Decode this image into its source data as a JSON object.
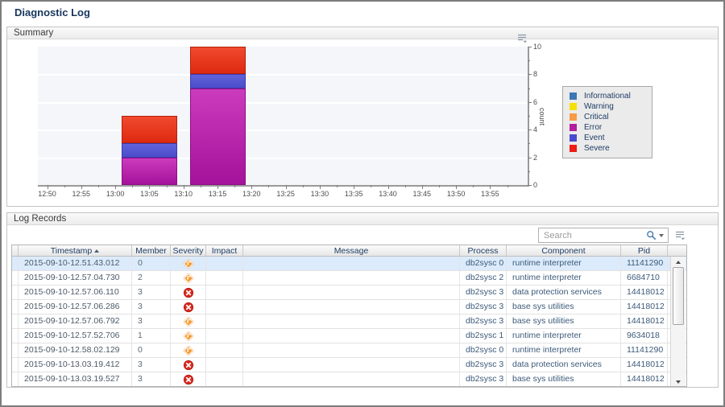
{
  "title": "Diagnostic Log",
  "summary": {
    "header": "Summary"
  },
  "chart_data": {
    "type": "bar",
    "stacked": true,
    "title": "",
    "xlabel": "",
    "ylabel": "count",
    "ylim": [
      0,
      10
    ],
    "y_ticks": [
      0,
      2,
      4,
      6,
      8,
      10
    ],
    "x_ticks": [
      "12:50",
      "12:55",
      "13:00",
      "13:05",
      "13:10",
      "13:15",
      "13:20",
      "13:25",
      "13:30",
      "13:35",
      "13:40",
      "13:45",
      "13:50",
      "13:55"
    ],
    "bar_centers": [
      "13:05",
      "13:15"
    ],
    "series": [
      {
        "name": "Error",
        "values": [
          2,
          7
        ],
        "color": "#cb3bbd",
        "color2": "#a5129b",
        "border": "#8f0d86"
      },
      {
        "name": "Event",
        "values": [
          1,
          1
        ],
        "color": "#6163db",
        "color2": "#4b4cc9",
        "border": "#3b3caf"
      },
      {
        "name": "Severe",
        "values": [
          2,
          2
        ],
        "color": "#f04a2e",
        "color2": "#de2a10",
        "border": "#b6200c"
      }
    ],
    "legend": [
      {
        "label": "Informational",
        "color": "#3c78b4"
      },
      {
        "label": "Warning",
        "color": "#f5e000"
      },
      {
        "label": "Critical",
        "color": "#f79b46"
      },
      {
        "label": "Error",
        "color": "#b41e9e"
      },
      {
        "label": "Event",
        "color": "#4a4ace"
      },
      {
        "label": "Severe",
        "color": "#ed1c14"
      }
    ],
    "legend_position": "right",
    "grid": true
  },
  "log": {
    "header": "Log Records",
    "search_placeholder": "Search",
    "columns": [
      {
        "label": "Timestamp",
        "sort": "asc"
      },
      {
        "label": "Member"
      },
      {
        "label": "Severity"
      },
      {
        "label": "Impact"
      },
      {
        "label": "Message"
      },
      {
        "label": "Process"
      },
      {
        "label": "Component"
      },
      {
        "label": "Pid"
      }
    ],
    "selected_row_index": 0,
    "rows": [
      {
        "timestamp": "2015-09-10-12.51.43.012",
        "member": "0",
        "severity": "warning",
        "impact": "",
        "message": "",
        "process": "db2sysc 0",
        "component": "runtime interpreter",
        "pid": "11141290"
      },
      {
        "timestamp": "2015-09-10-12.57.04.730",
        "member": "2",
        "severity": "warning",
        "impact": "",
        "message": "",
        "process": "db2sysc 2",
        "component": "runtime interpreter",
        "pid": "6684710"
      },
      {
        "timestamp": "2015-09-10-12.57.06.110",
        "member": "3",
        "severity": "error",
        "impact": "",
        "message": "",
        "process": "db2sysc 3",
        "component": "data protection services",
        "pid": "14418012"
      },
      {
        "timestamp": "2015-09-10-12.57.06.286",
        "member": "3",
        "severity": "error",
        "impact": "",
        "message": "",
        "process": "db2sysc 3",
        "component": "base sys utilities",
        "pid": "14418012"
      },
      {
        "timestamp": "2015-09-10-12.57.06.792",
        "member": "3",
        "severity": "warning",
        "impact": "",
        "message": "",
        "process": "db2sysc 3",
        "component": "base sys utilities",
        "pid": "14418012"
      },
      {
        "timestamp": "2015-09-10-12.57.52.706",
        "member": "1",
        "severity": "warning",
        "impact": "",
        "message": "",
        "process": "db2sysc 1",
        "component": "runtime interpreter",
        "pid": "9634018"
      },
      {
        "timestamp": "2015-09-10-12.58.02.129",
        "member": "0",
        "severity": "warning",
        "impact": "",
        "message": "",
        "process": "db2sysc 0",
        "component": "runtime interpreter",
        "pid": "11141290"
      },
      {
        "timestamp": "2015-09-10-13.03.19.412",
        "member": "3",
        "severity": "error",
        "impact": "",
        "message": "",
        "process": "db2sysc 3",
        "component": "data protection services",
        "pid": "14418012"
      },
      {
        "timestamp": "2015-09-10-13.03.19.527",
        "member": "3",
        "severity": "error",
        "impact": "",
        "message": "",
        "process": "db2sysc 3",
        "component": "base sys utilities",
        "pid": "14418012"
      }
    ]
  }
}
